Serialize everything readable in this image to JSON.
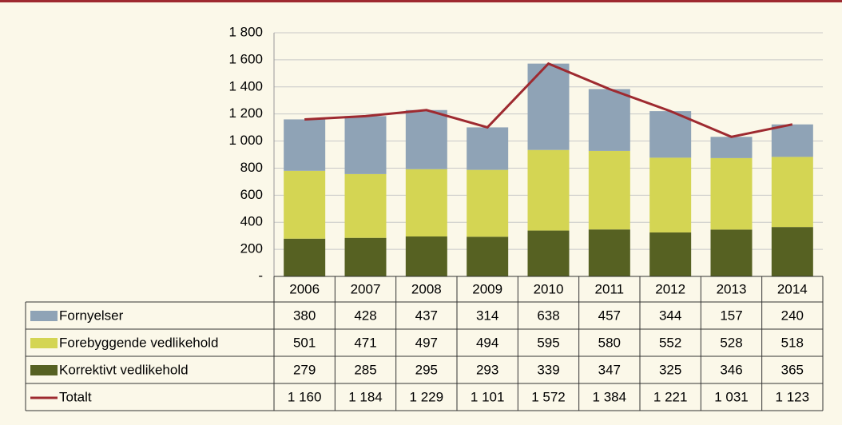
{
  "chart_data": {
    "type": "bar",
    "stacked": true,
    "categories": [
      "2006",
      "2007",
      "2008",
      "2009",
      "2010",
      "2011",
      "2012",
      "2013",
      "2014"
    ],
    "series": [
      {
        "name": "Fornyelser",
        "color": "#8fa3b6",
        "values": [
          380,
          428,
          437,
          314,
          638,
          457,
          344,
          157,
          240
        ]
      },
      {
        "name": "Forebyggende vedlikehold",
        "color": "#d4d553",
        "values": [
          501,
          471,
          497,
          494,
          595,
          580,
          552,
          528,
          518
        ]
      },
      {
        "name": "Korrektivt vedlikehold",
        "color": "#566122",
        "values": [
          279,
          285,
          295,
          293,
          339,
          347,
          325,
          346,
          365
        ]
      },
      {
        "name": "Totalt",
        "type": "line",
        "color": "#9e2a30",
        "values": [
          1160,
          1184,
          1229,
          1101,
          1572,
          1384,
          1221,
          1031,
          1123
        ],
        "value_labels": [
          "1 160",
          "1 184",
          "1 229",
          "1 101",
          "1 572",
          "1 384",
          "1 221",
          "1 031",
          "1 123"
        ]
      }
    ],
    "ylim": [
      0,
      1800
    ],
    "yticks": [
      {
        "value": 0,
        "label": "-"
      },
      200,
      400,
      600,
      800,
      {
        "value": 1000,
        "label": "1 000"
      },
      {
        "value": 1200,
        "label": "1 200"
      },
      {
        "value": 1400,
        "label": "1 400"
      },
      {
        "value": 1600,
        "label": "1 600"
      },
      {
        "value": 1800,
        "label": "1 800"
      }
    ],
    "grid": true
  }
}
